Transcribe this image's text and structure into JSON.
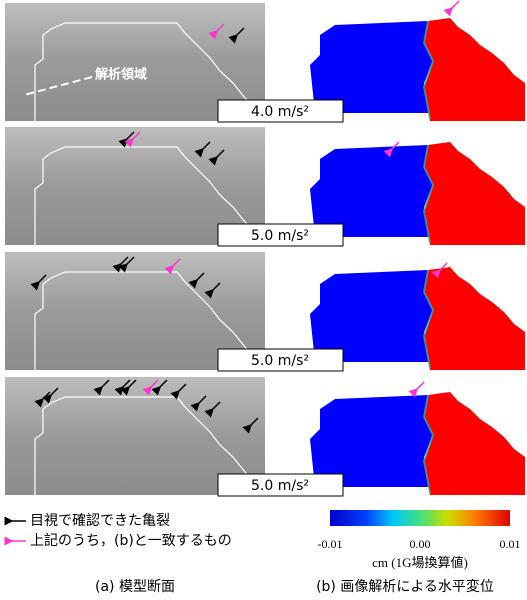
{
  "region_label": "解析領域",
  "panels": [
    {
      "acceleration": "4.0 m/s²"
    },
    {
      "acceleration": "5.0 m/s²"
    },
    {
      "acceleration": "5.0 m/s²"
    },
    {
      "acceleration": "5.0 m/s²"
    }
  ],
  "legend": {
    "black_arrow": "目視で確認できた亀裂",
    "magenta_arrow": "上記のうち，(b)と一致するもの"
  },
  "colorbar": {
    "ticks": [
      "-0.01",
      "0.00",
      "0.01"
    ],
    "unit": "cm (1G場換算値)"
  },
  "captions": {
    "a": "(a) 模型断面",
    "b": "(b) 画像解析による水平変位"
  }
}
